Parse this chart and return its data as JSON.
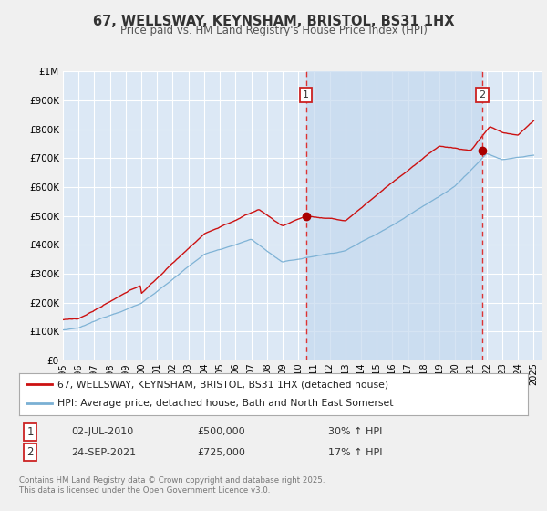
{
  "title": "67, WELLSWAY, KEYNSHAM, BRISTOL, BS31 1HX",
  "subtitle": "Price paid vs. HM Land Registry's House Price Index (HPI)",
  "hpi_label": "HPI: Average price, detached house, Bath and North East Somerset",
  "property_label": "67, WELLSWAY, KEYNSHAM, BRISTOL, BS31 1HX (detached house)",
  "sale1_date": "02-JUL-2010",
  "sale1_price": 500000,
  "sale1_hpi": "30% ↑ HPI",
  "sale2_date": "24-SEP-2021",
  "sale2_price": 725000,
  "sale2_hpi": "17% ↑ HPI",
  "sale1_year": 2010.5,
  "sale2_year": 2021.73,
  "footer": "Contains HM Land Registry data © Crown copyright and database right 2025.\nThis data is licensed under the Open Government Licence v3.0.",
  "ylim": [
    0,
    1000000
  ],
  "xlim_start": 1995,
  "xlim_end": 2025.5,
  "bg_color": "#f0f0f0",
  "plot_bg_color": "#dce8f5",
  "grid_color": "#ffffff",
  "hpi_color": "#7ab0d4",
  "property_color": "#cc1111",
  "sale_marker_color": "#aa0000",
  "vline_color": "#dd3333",
  "shade_color": "#c5d9ee",
  "yticks": [
    0,
    100000,
    200000,
    300000,
    400000,
    500000,
    600000,
    700000,
    800000,
    900000,
    1000000
  ],
  "ytick_labels": [
    "£0",
    "£100K",
    "£200K",
    "£300K",
    "£400K",
    "£500K",
    "£600K",
    "£700K",
    "£800K",
    "£900K",
    "£1M"
  ],
  "xticks": [
    1995,
    1996,
    1997,
    1998,
    1999,
    2000,
    2001,
    2002,
    2003,
    2004,
    2005,
    2006,
    2007,
    2008,
    2009,
    2010,
    2011,
    2012,
    2013,
    2014,
    2015,
    2016,
    2017,
    2018,
    2019,
    2020,
    2021,
    2022,
    2023,
    2024,
    2025
  ]
}
